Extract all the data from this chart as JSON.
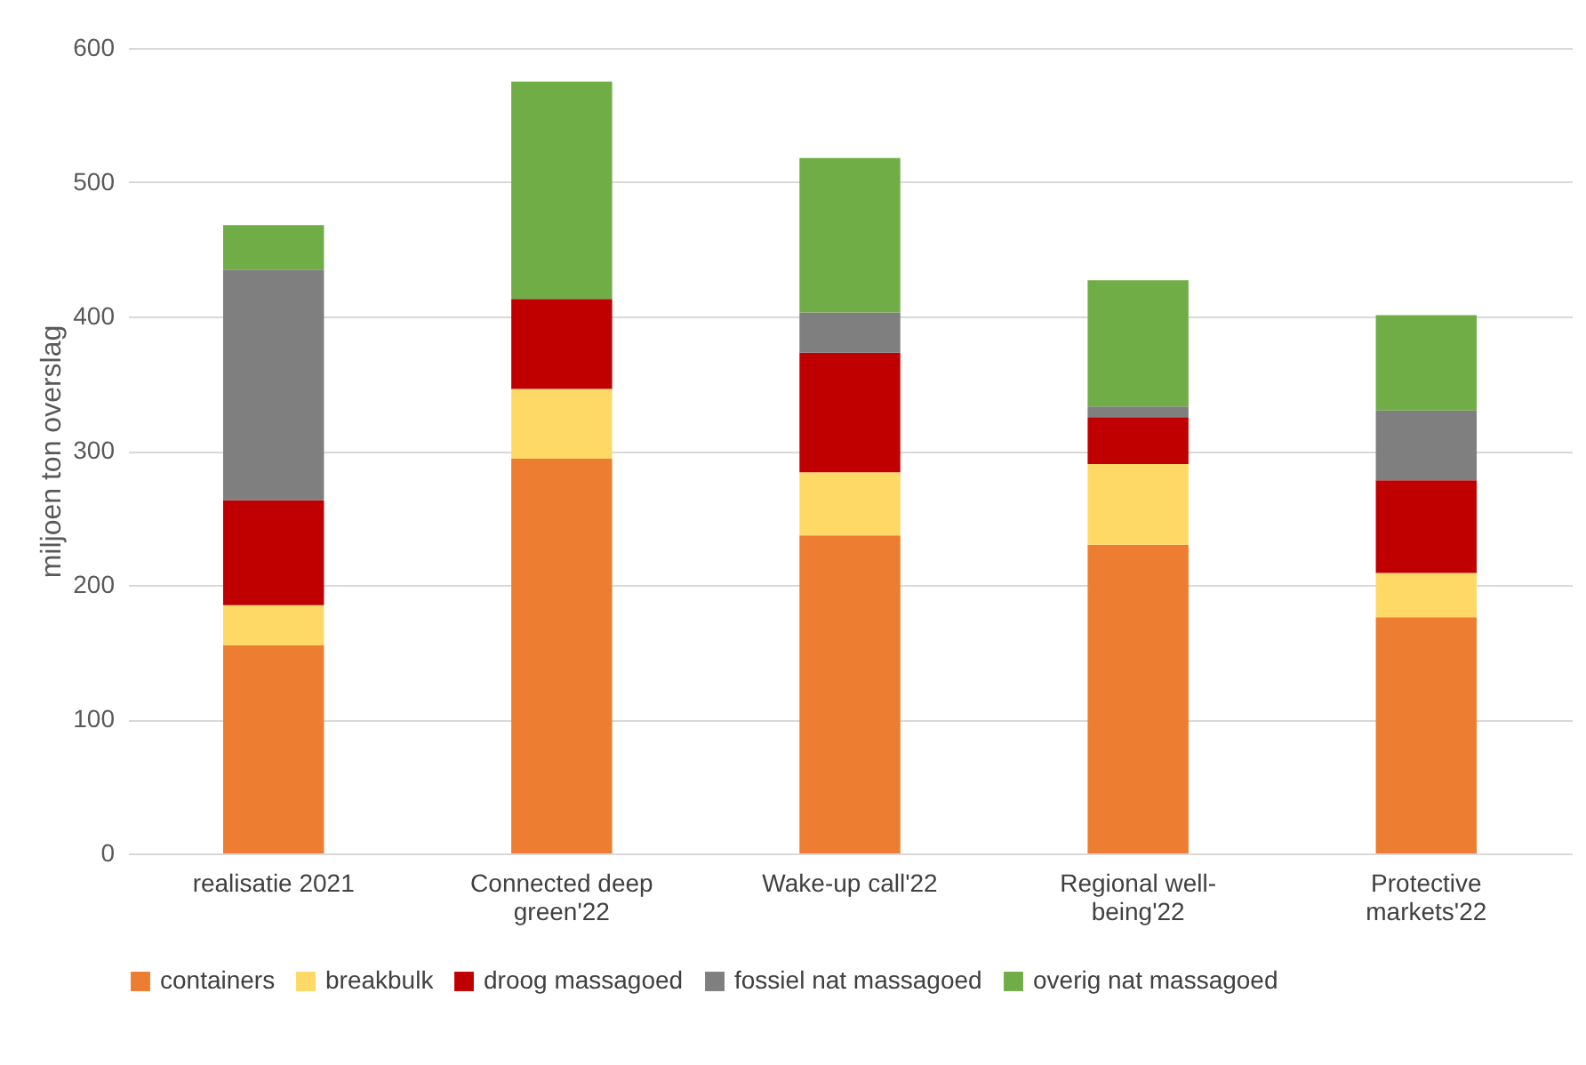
{
  "chart_data": {
    "type": "bar",
    "stacked": true,
    "ylabel": "miljoen ton overslag",
    "categories": [
      "realisatie 2021",
      "Connected deep green'22",
      "Wake-up call'22",
      "Regional well-being'22",
      "Protective markets'22"
    ],
    "series": [
      {
        "name": "containers",
        "color": "#ed7d31",
        "values": [
          155,
          294,
          237,
          230,
          176
        ]
      },
      {
        "name": "breakbulk",
        "color": "#ffd966",
        "values": [
          30,
          52,
          47,
          60,
          33
        ]
      },
      {
        "name": "droog massagoed",
        "color": "#c00000",
        "values": [
          78,
          67,
          89,
          35,
          69
        ]
      },
      {
        "name": "fossiel nat massagoed",
        "color": "#7f7f7f",
        "values": [
          172,
          0,
          30,
          8,
          52
        ]
      },
      {
        "name": "overig nat massagoed",
        "color": "#70ad47",
        "values": [
          33,
          162,
          115,
          94,
          71
        ]
      }
    ],
    "ylim": [
      0,
      600
    ],
    "yticks": [
      0,
      100,
      200,
      300,
      400,
      500,
      600
    ],
    "grid": "y",
    "legend": "bottom"
  }
}
